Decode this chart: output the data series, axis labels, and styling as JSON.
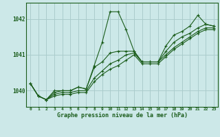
{
  "bg_color": "#cce8e8",
  "grid_color": "#aacccc",
  "line_color": "#1a5c1a",
  "marker_color": "#1a5c1a",
  "xlabel": "Graphe pression niveau de la mer (hPa)",
  "xlabel_color": "#1a5c1a",
  "ylabel_color": "#1a5c1a",
  "yticks": [
    1040,
    1041,
    1042
  ],
  "ylim": [
    1039.55,
    1042.45
  ],
  "xlim": [
    -0.5,
    23.5
  ],
  "series": [
    [
      1040.2,
      1039.85,
      1039.75,
      1040.0,
      1040.0,
      1040.0,
      1040.1,
      1040.05,
      1040.7,
      1041.35,
      1042.2,
      1042.2,
      1041.7,
      1041.1,
      1040.8,
      1040.8,
      1040.8,
      1041.25,
      1041.55,
      1041.65,
      1041.8,
      1042.1,
      1041.85,
      1041.8
    ],
    [
      1040.2,
      1039.85,
      1039.75,
      1039.95,
      1040.0,
      1040.0,
      1040.1,
      1040.05,
      1040.65,
      1040.8,
      1041.05,
      1041.1,
      1041.1,
      1041.1,
      1040.8,
      1040.8,
      1040.8,
      1041.1,
      1041.35,
      1041.5,
      1041.6,
      1041.75,
      1041.85,
      1041.8
    ],
    [
      1040.2,
      1039.85,
      1039.75,
      1039.9,
      1039.95,
      1039.95,
      1040.0,
      1040.0,
      1040.35,
      1040.55,
      1040.75,
      1040.85,
      1041.0,
      1041.05,
      1040.8,
      1040.8,
      1040.8,
      1041.0,
      1041.2,
      1041.35,
      1041.5,
      1041.65,
      1041.75,
      1041.75
    ],
    [
      1040.2,
      1039.85,
      1039.75,
      1039.85,
      1039.9,
      1039.9,
      1039.95,
      1039.95,
      1040.25,
      1040.45,
      1040.6,
      1040.7,
      1040.85,
      1041.0,
      1040.75,
      1040.75,
      1040.75,
      1040.95,
      1041.15,
      1041.3,
      1041.45,
      1041.6,
      1041.7,
      1041.7
    ]
  ]
}
